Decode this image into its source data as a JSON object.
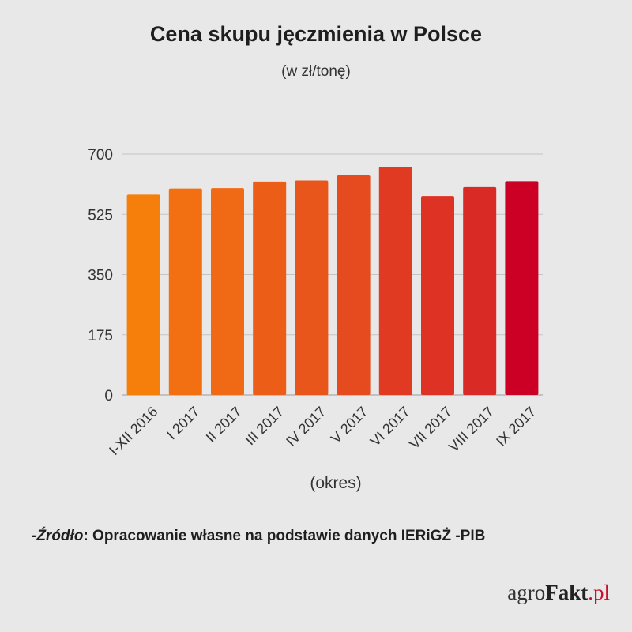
{
  "chart_data": {
    "type": "bar",
    "title": "Cena skupu jęczmienia w Polsce",
    "subtitle": "(w zł/tonę)",
    "xlabel": "(okres)",
    "ylabel": "",
    "categories": [
      "I-XII 2016",
      "I 2017",
      "II 2017",
      "III 2017",
      "IV 2017",
      "V 2017",
      "VI 2017",
      "VII 2017",
      "VIII 2017",
      "IX 2017"
    ],
    "values": [
      582,
      600,
      601,
      620,
      623,
      638,
      663,
      578,
      604,
      621
    ],
    "ylim": [
      0,
      700
    ],
    "yticks": [
      0,
      175,
      350,
      525,
      700
    ],
    "grid": true,
    "legend": "none",
    "bar_colors": [
      "#f57f0a",
      "#f37012",
      "#f06a15",
      "#ec5d18",
      "#e9561b",
      "#e54b1e",
      "#e13a22",
      "#dd3224",
      "#d92a26",
      "#cc0025"
    ]
  },
  "source": {
    "prefix": "-",
    "label": "Źródło",
    "text": ": Opracowanie własne na podstawie danych IERiGŻ -PIB"
  },
  "logo": {
    "part1": "agro",
    "part2": "Fakt",
    "part3": ".pl"
  }
}
